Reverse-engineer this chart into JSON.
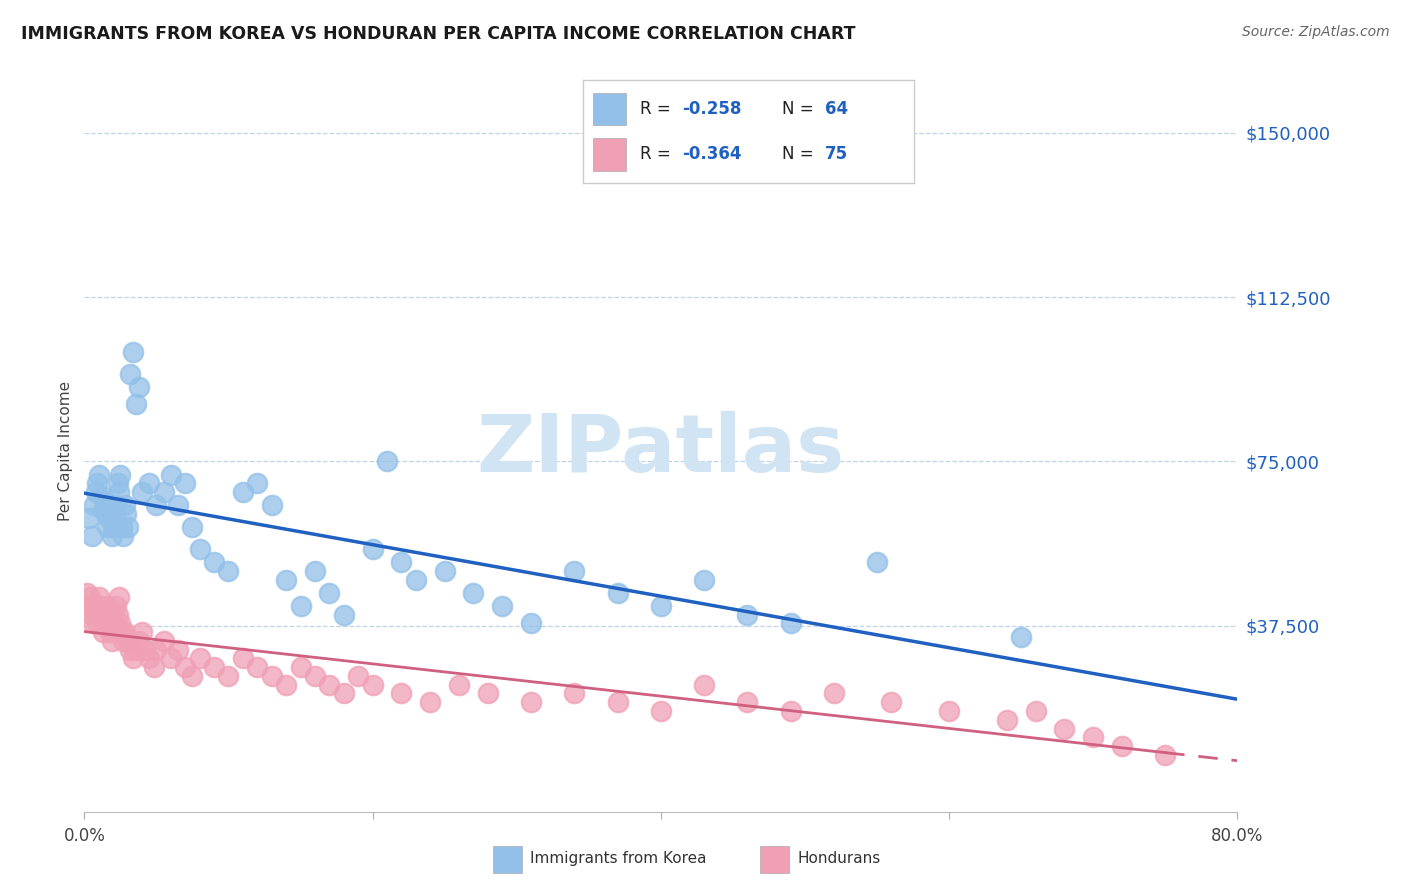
{
  "title": "IMMIGRANTS FROM KOREA VS HONDURAN PER CAPITA INCOME CORRELATION CHART",
  "source": "Source: ZipAtlas.com",
  "ylabel": "Per Capita Income",
  "yticks": [
    0,
    37500,
    75000,
    112500,
    150000
  ],
  "ytick_labels": [
    "",
    "$37,500",
    "$75,000",
    "$112,500",
    "$150,000"
  ],
  "ymax": 160000,
  "ymin": -5000,
  "xmin": 0.0,
  "xmax": 0.8,
  "blue_R": "-0.258",
  "blue_N": "64",
  "pink_R": "-0.364",
  "pink_N": "75",
  "blue_color": "#92C0E8",
  "pink_color": "#F0A0B5",
  "blue_line_color": "#2060C0",
  "pink_line_color": "#D06080",
  "watermark_color": "#D0E4F4",
  "legend1": "Immigrants from Korea",
  "legend2": "Hondurans",
  "blue_x": [
    0.003,
    0.005,
    0.007,
    0.008,
    0.009,
    0.01,
    0.012,
    0.013,
    0.014,
    0.015,
    0.016,
    0.017,
    0.018,
    0.019,
    0.02,
    0.021,
    0.022,
    0.023,
    0.024,
    0.025,
    0.026,
    0.027,
    0.028,
    0.029,
    0.03,
    0.032,
    0.034,
    0.036,
    0.038,
    0.04,
    0.045,
    0.05,
    0.055,
    0.06,
    0.065,
    0.07,
    0.075,
    0.08,
    0.09,
    0.1,
    0.11,
    0.12,
    0.13,
    0.14,
    0.15,
    0.16,
    0.17,
    0.18,
    0.2,
    0.21,
    0.22,
    0.23,
    0.25,
    0.27,
    0.29,
    0.31,
    0.34,
    0.37,
    0.4,
    0.43,
    0.46,
    0.49,
    0.55,
    0.65
  ],
  "blue_y": [
    62000,
    58000,
    65000,
    68000,
    70000,
    72000,
    67000,
    64000,
    66000,
    63000,
    60000,
    62000,
    65000,
    58000,
    60000,
    63000,
    65000,
    70000,
    68000,
    72000,
    60000,
    58000,
    65000,
    63000,
    60000,
    95000,
    100000,
    88000,
    92000,
    68000,
    70000,
    65000,
    68000,
    72000,
    65000,
    70000,
    60000,
    55000,
    52000,
    50000,
    68000,
    70000,
    65000,
    48000,
    42000,
    50000,
    45000,
    40000,
    55000,
    75000,
    52000,
    48000,
    50000,
    45000,
    42000,
    38000,
    50000,
    45000,
    42000,
    48000,
    40000,
    38000,
    52000,
    35000
  ],
  "pink_x": [
    0.002,
    0.003,
    0.004,
    0.005,
    0.006,
    0.007,
    0.008,
    0.009,
    0.01,
    0.011,
    0.012,
    0.013,
    0.014,
    0.015,
    0.016,
    0.017,
    0.018,
    0.019,
    0.02,
    0.021,
    0.022,
    0.023,
    0.024,
    0.025,
    0.026,
    0.027,
    0.028,
    0.03,
    0.032,
    0.034,
    0.036,
    0.038,
    0.04,
    0.042,
    0.045,
    0.048,
    0.05,
    0.055,
    0.06,
    0.065,
    0.07,
    0.075,
    0.08,
    0.09,
    0.1,
    0.11,
    0.12,
    0.13,
    0.14,
    0.15,
    0.16,
    0.17,
    0.18,
    0.19,
    0.2,
    0.22,
    0.24,
    0.26,
    0.28,
    0.31,
    0.34,
    0.37,
    0.4,
    0.43,
    0.46,
    0.49,
    0.52,
    0.56,
    0.6,
    0.64,
    0.66,
    0.68,
    0.7,
    0.72,
    0.75
  ],
  "pink_y": [
    45000,
    42000,
    44000,
    40000,
    38000,
    42000,
    40000,
    38000,
    44000,
    42000,
    40000,
    36000,
    38000,
    40000,
    42000,
    38000,
    36000,
    34000,
    40000,
    38000,
    42000,
    40000,
    44000,
    38000,
    36000,
    34000,
    36000,
    34000,
    32000,
    30000,
    32000,
    34000,
    36000,
    32000,
    30000,
    28000,
    32000,
    34000,
    30000,
    32000,
    28000,
    26000,
    30000,
    28000,
    26000,
    30000,
    28000,
    26000,
    24000,
    28000,
    26000,
    24000,
    22000,
    26000,
    24000,
    22000,
    20000,
    24000,
    22000,
    20000,
    22000,
    20000,
    18000,
    24000,
    20000,
    18000,
    22000,
    20000,
    18000,
    16000,
    18000,
    14000,
    12000,
    10000,
    8000
  ]
}
